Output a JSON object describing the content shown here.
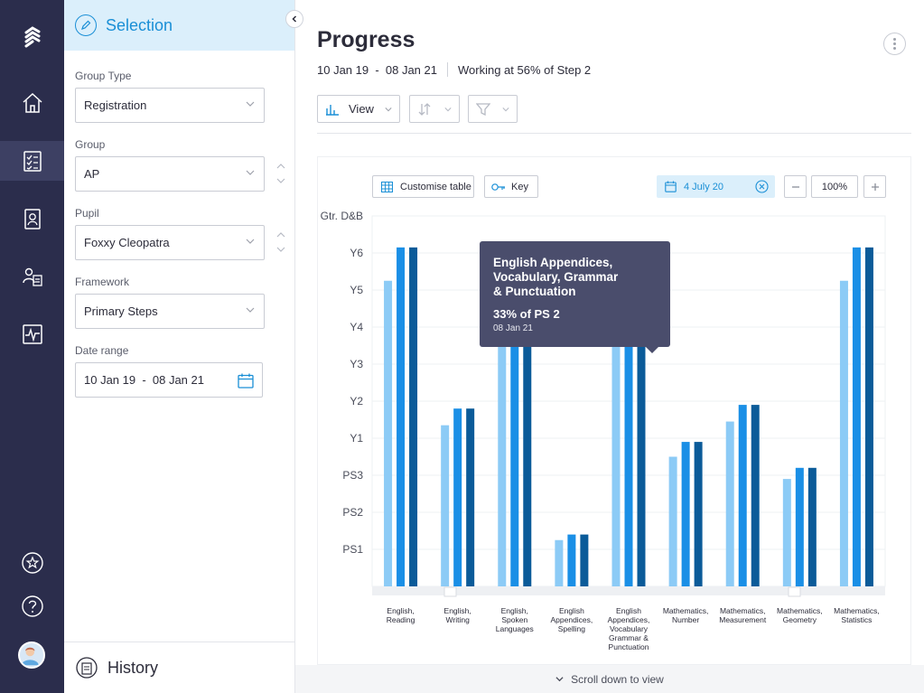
{
  "nav": {
    "items": [
      {
        "name": "logo-icon"
      },
      {
        "name": "home-icon"
      },
      {
        "name": "checklist-icon",
        "active": true
      },
      {
        "name": "pupil-profile-icon"
      },
      {
        "name": "groups-icon"
      },
      {
        "name": "activity-icon"
      },
      {
        "name": "star-icon"
      },
      {
        "name": "help-icon"
      }
    ]
  },
  "selection": {
    "title": "Selection",
    "group_type_label": "Group Type",
    "group_type_value": "Registration",
    "group_label": "Group",
    "group_value": "AP",
    "pupil_label": "Pupil",
    "pupil_value": "Foxxy Cleopatra",
    "framework_label": "Framework",
    "framework_value": "Primary Steps",
    "date_range_label": "Date range",
    "date_range_value": "10 Jan 19  -  08 Jan 21",
    "history_label": "History"
  },
  "main": {
    "title": "Progress",
    "date_range": "10 Jan 19  -  08 Jan 21",
    "working_status": "Working at 56% of Step 2",
    "view_label": "View",
    "customise_label": "Customise table",
    "key_label": "Key",
    "date_chip": "4 July 20",
    "zoom": "100%",
    "scroll_hint": "Scroll down to view"
  },
  "tooltip": {
    "title": "English Appendices, Vocabulary, Grammar & Punctuation",
    "value": "33% of PS 2",
    "date": "08 Jan 21"
  },
  "colors": {
    "series_light": "#8ccbf6",
    "series_mid": "#1a8fe6",
    "series_dark": "#0b5b99",
    "accent": "#1a8fd6",
    "rail": "#2b2d4c"
  },
  "chart_data": {
    "type": "bar",
    "title": "",
    "xlabel": "",
    "ylabel": "",
    "y_levels": [
      "PS1",
      "PS2",
      "PS3",
      "Y1",
      "Y2",
      "Y3",
      "Y4",
      "Y5",
      "Y6",
      "Gtr. D&B"
    ],
    "ylim": [
      0,
      10
    ],
    "categories": [
      [
        "English,",
        "Reading"
      ],
      [
        "English,",
        "Writing"
      ],
      [
        "English,",
        "Spoken",
        "Languages"
      ],
      [
        "English",
        "Appendices,",
        "Spelling"
      ],
      [
        "English",
        "Appendices,",
        "Vocabulary",
        "Grammar &",
        "Punctuation"
      ],
      [
        "Mathematics,",
        "Number"
      ],
      [
        "Mathematics,",
        "Measurement"
      ],
      [
        "Mathematics,",
        "Geometry"
      ],
      [
        "Mathematics,",
        "Statistics"
      ]
    ],
    "series": [
      {
        "name": "light",
        "values": [
          8.25,
          4.35,
          7.4,
          1.25,
          7.4,
          3.5,
          4.45,
          2.9,
          8.25
        ]
      },
      {
        "name": "mid",
        "values": [
          9.15,
          4.8,
          7.4,
          1.4,
          7.4,
          3.9,
          4.9,
          3.2,
          9.15
        ]
      },
      {
        "name": "dark",
        "values": [
          9.15,
          4.8,
          7.4,
          1.4,
          7.4,
          3.9,
          4.9,
          3.2,
          9.15
        ]
      }
    ],
    "grid": true
  }
}
